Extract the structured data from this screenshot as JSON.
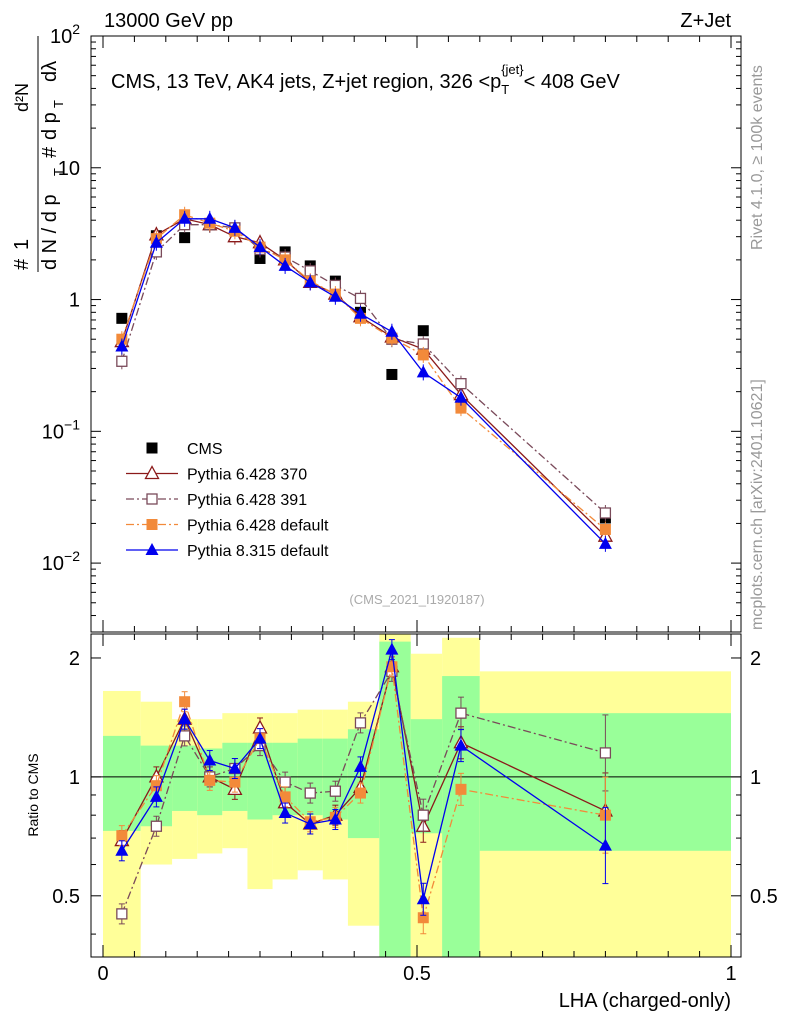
{
  "header": {
    "left": "13000 GeV pp",
    "right": "Z+Jet"
  },
  "side_labels": {
    "rivet": "Rivet 4.1.0, ≥ 100k events",
    "source": "mcplots.cern.ch [arXiv:2401.10621]"
  },
  "analysis_id": "(CMS_2021_I1920187)",
  "chart_data": [
    {
      "type": "scatter",
      "panel": "main",
      "title": "CMS, 13 TeV, AK4 jets, Z+jet region, 326 <p_T^{jet}< 408 GeV",
      "title_parts": {
        "pre": "CMS, 13 TeV, AK4 jets, Z+jet region, 326 <p",
        "sub": "T",
        "sup": "{jet}",
        "post": "< 408 GeV"
      },
      "ylabel": "# 1/(dN/dp_T) # d²N/(dp_T dλ)",
      "ylabel_parts": {
        "one": "1",
        "dN": "d N / d p",
        "T": "T",
        "d2N": "d²N",
        "dpT": "d p",
        "dl": "dλ"
      },
      "xlabel": "",
      "yscale": "log",
      "xlim": [
        0,
        1
      ],
      "ylim": [
        0.003,
        100
      ],
      "yticks": [
        {
          "v": 0.01,
          "base": "10",
          "exp": "−2"
        },
        {
          "v": 0.1,
          "base": "10",
          "exp": "−1"
        },
        {
          "v": 1,
          "base": "1",
          "exp": ""
        },
        {
          "v": 10,
          "base": "10",
          "exp": ""
        },
        {
          "v": 100,
          "base": "10",
          "exp": "2"
        }
      ],
      "x": [
        0.03,
        0.085,
        0.13,
        0.17,
        0.21,
        0.25,
        0.29,
        0.33,
        0.37,
        0.41,
        0.46,
        0.51,
        0.57,
        0.8
      ],
      "series": [
        {
          "name": "CMS",
          "color": "#000000",
          "marker": "square-filled",
          "line": "none",
          "values": [
            0.72,
            3.05,
            2.95,
            3.7,
            3.4,
            2.05,
            2.3,
            1.8,
            1.38,
            0.8,
            0.27,
            0.58,
            0.16,
            0.022
          ]
        },
        {
          "name": "Pythia 6.428 370",
          "color": "#8b1a1a",
          "marker": "triangle-open",
          "line": "solid",
          "values": [
            0.48,
            3.1,
            4.1,
            3.7,
            3.0,
            2.7,
            2.0,
            1.35,
            1.1,
            0.74,
            0.52,
            0.42,
            0.19,
            0.016
          ]
        },
        {
          "name": "Pythia 6.428 391",
          "color": "#7a4a5a",
          "marker": "square-open",
          "line": "dashdot",
          "values": [
            0.34,
            2.3,
            3.7,
            3.7,
            3.5,
            2.4,
            2.1,
            1.65,
            1.28,
            1.02,
            0.5,
            0.46,
            0.23,
            0.024
          ]
        },
        {
          "name": "Pythia 6.428 default",
          "color": "#f28a3a",
          "marker": "square-filled",
          "line": "dashdot",
          "values": [
            0.5,
            2.9,
            4.4,
            3.8,
            3.3,
            2.5,
            2.0,
            1.38,
            1.1,
            0.72,
            0.51,
            0.38,
            0.15,
            0.018
          ]
        },
        {
          "name": "Pythia 8.315 default",
          "color": "#0000ee",
          "marker": "triangle-filled",
          "line": "solid",
          "values": [
            0.44,
            2.7,
            4.1,
            4.1,
            3.5,
            2.5,
            1.8,
            1.35,
            1.05,
            0.78,
            0.57,
            0.28,
            0.18,
            0.014
          ]
        }
      ]
    },
    {
      "type": "scatter",
      "panel": "ratio",
      "ylabel": "Ratio to CMS",
      "xlabel": "LHA (charged-only)",
      "xlim": [
        0,
        1
      ],
      "ylim": [
        0.35,
        2.3
      ],
      "yscale": "log",
      "yticks_left": [
        "0.5",
        "1",
        "2"
      ],
      "yticks_right": [
        "0.5",
        "1",
        "2"
      ],
      "xticks": [
        "0",
        "0.5",
        "1"
      ],
      "bands": [
        {
          "x0": 0.0,
          "x1": 0.06,
          "green": [
            0.73,
            1.27
          ],
          "yellow": [
            0.35,
            1.65
          ]
        },
        {
          "x0": 0.06,
          "x1": 0.11,
          "green": [
            0.75,
            1.2
          ],
          "yellow": [
            0.6,
            1.55
          ]
        },
        {
          "x0": 0.11,
          "x1": 0.15,
          "green": [
            0.82,
            1.2
          ],
          "yellow": [
            0.62,
            1.4
          ]
        },
        {
          "x0": 0.15,
          "x1": 0.19,
          "green": [
            0.8,
            1.18
          ],
          "yellow": [
            0.64,
            1.4
          ]
        },
        {
          "x0": 0.19,
          "x1": 0.23,
          "green": [
            0.82,
            1.22
          ],
          "yellow": [
            0.66,
            1.45
          ]
        },
        {
          "x0": 0.23,
          "x1": 0.27,
          "green": [
            0.78,
            1.22
          ],
          "yellow": [
            0.52,
            1.45
          ]
        },
        {
          "x0": 0.27,
          "x1": 0.31,
          "green": [
            0.8,
            1.22
          ],
          "yellow": [
            0.55,
            1.45
          ]
        },
        {
          "x0": 0.31,
          "x1": 0.35,
          "green": [
            0.8,
            1.25
          ],
          "yellow": [
            0.58,
            1.48
          ]
        },
        {
          "x0": 0.35,
          "x1": 0.39,
          "green": [
            0.78,
            1.25
          ],
          "yellow": [
            0.55,
            1.48
          ]
        },
        {
          "x0": 0.39,
          "x1": 0.44,
          "green": [
            0.7,
            1.32
          ],
          "yellow": [
            0.42,
            1.55
          ]
        },
        {
          "x0": 0.44,
          "x1": 0.49,
          "green": [
            0.35,
            2.2
          ],
          "yellow": [
            0.35,
            2.3
          ]
        },
        {
          "x0": 0.49,
          "x1": 0.54,
          "green": [
            0.72,
            1.4
          ],
          "yellow": [
            0.35,
            2.05
          ]
        },
        {
          "x0": 0.54,
          "x1": 0.6,
          "green": [
            0.35,
            1.8
          ],
          "yellow": [
            0.35,
            2.25
          ]
        },
        {
          "x0": 0.6,
          "x1": 1.0,
          "green": [
            0.65,
            1.45
          ],
          "yellow": [
            0.35,
            1.85
          ]
        }
      ],
      "x": [
        0.03,
        0.085,
        0.13,
        0.17,
        0.21,
        0.25,
        0.29,
        0.33,
        0.37,
        0.41,
        0.46,
        0.51,
        0.57,
        0.8
      ],
      "series": [
        {
          "name": "Pythia 6.428 370",
          "color": "#8b1a1a",
          "marker": "triangle-open",
          "line": "solid",
          "values": [
            0.69,
            1.0,
            1.4,
            1.0,
            0.93,
            1.33,
            0.86,
            0.76,
            0.8,
            0.94,
            1.9,
            0.75,
            1.22,
            0.82
          ]
        },
        {
          "name": "Pythia 6.428 391",
          "color": "#7a4a5a",
          "marker": "square-open",
          "line": "dashdot",
          "values": [
            0.45,
            0.75,
            1.27,
            1.0,
            1.05,
            1.2,
            0.97,
            0.91,
            0.92,
            1.37,
            1.85,
            0.8,
            1.45,
            1.15
          ]
        },
        {
          "name": "Pythia 6.428 default",
          "color": "#f28a3a",
          "marker": "square-filled",
          "line": "dashdot",
          "values": [
            0.71,
            0.95,
            1.55,
            0.98,
            0.97,
            1.25,
            0.89,
            0.77,
            0.79,
            0.91,
            1.9,
            0.44,
            0.93,
            0.8
          ]
        },
        {
          "name": "Pythia 8.315 default",
          "color": "#0000ee",
          "marker": "triangle-filled",
          "line": "solid",
          "values": [
            0.65,
            0.89,
            1.4,
            1.1,
            1.05,
            1.25,
            0.81,
            0.76,
            0.78,
            1.06,
            2.1,
            0.49,
            1.2,
            0.67
          ]
        }
      ]
    }
  ]
}
